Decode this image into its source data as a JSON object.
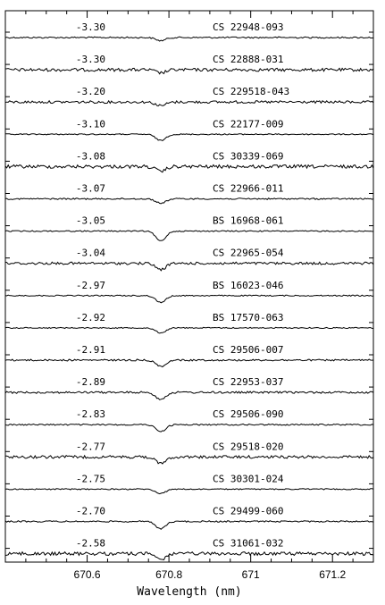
{
  "chart_data": {
    "type": "line",
    "xlabel": "Wavelength (nm)",
    "ylabel": "",
    "xlim": [
      670.4,
      671.3
    ],
    "x_ticks": [
      670.6,
      670.8,
      671.0,
      671.2
    ],
    "x_tick_labels": [
      "670.6",
      "670.8",
      "671",
      "671.2"
    ],
    "line_center": 670.78,
    "series": [
      {
        "name": "CS 22948-093",
        "metallicity": "-3.30",
        "depth": 0.25,
        "noise": 0.25
      },
      {
        "name": "CS 22888-031",
        "metallicity": "-3.30",
        "depth": 0.25,
        "noise": 0.55
      },
      {
        "name": "CS 229518-043",
        "metallicity": "-3.20",
        "depth": 0.3,
        "noise": 0.45
      },
      {
        "name": "CS 22177-009",
        "metallicity": "-3.10",
        "depth": 0.5,
        "noise": 0.2
      },
      {
        "name": "CS 30339-069",
        "metallicity": "-3.08",
        "depth": 0.4,
        "noise": 0.6
      },
      {
        "name": "CS 22966-011",
        "metallicity": "-3.07",
        "depth": 0.35,
        "noise": 0.25
      },
      {
        "name": "BS 16968-061",
        "metallicity": "-3.05",
        "depth": 0.8,
        "noise": 0.2
      },
      {
        "name": "CS 22965-054",
        "metallicity": "-3.04",
        "depth": 0.5,
        "noise": 0.45
      },
      {
        "name": "BS 16023-046",
        "metallicity": "-2.97",
        "depth": 0.55,
        "noise": 0.2
      },
      {
        "name": "BS 17570-063",
        "metallicity": "-2.92",
        "depth": 0.4,
        "noise": 0.2
      },
      {
        "name": "CS 29506-007",
        "metallicity": "-2.91",
        "depth": 0.5,
        "noise": 0.3
      },
      {
        "name": "CS 22953-037",
        "metallicity": "-2.89",
        "depth": 0.55,
        "noise": 0.35
      },
      {
        "name": "CS 29506-090",
        "metallicity": "-2.83",
        "depth": 0.55,
        "noise": 0.25
      },
      {
        "name": "CS 29518-020",
        "metallicity": "-2.77",
        "depth": 0.55,
        "noise": 0.5
      },
      {
        "name": "CS 30301-024",
        "metallicity": "-2.75",
        "depth": 0.35,
        "noise": 0.2
      },
      {
        "name": "CS 29499-060",
        "metallicity": "-2.70",
        "depth": 0.6,
        "noise": 0.25
      },
      {
        "name": "CS 31061-032",
        "metallicity": "-2.58",
        "depth": 0.45,
        "noise": 0.6
      }
    ]
  }
}
